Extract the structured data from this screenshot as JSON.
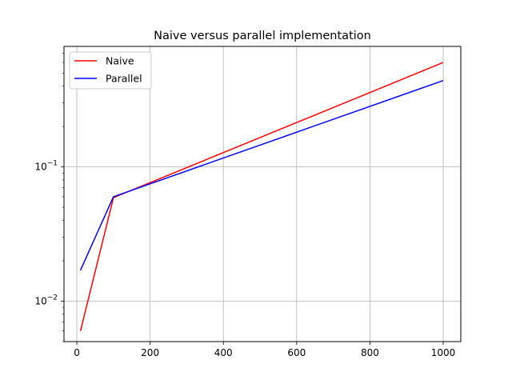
{
  "chart_data": {
    "type": "line",
    "title": "Naive versus parallel implementation",
    "xlabel": "",
    "ylabel": "",
    "xlim": [
      -35,
      1048
    ],
    "ylim": [
      0.005,
      0.79
    ],
    "yscale": "log",
    "x_ticks": [
      0,
      200,
      400,
      600,
      800,
      1000
    ],
    "x_tick_labels": [
      "0",
      "200",
      "400",
      "600",
      "800",
      "1000"
    ],
    "y_ticks": [
      0.01,
      0.1
    ],
    "y_tick_labels": [
      {
        "base": "10",
        "exp": "−2"
      },
      {
        "base": "10",
        "exp": "−1"
      }
    ],
    "grid": true,
    "legend_position": "top-left",
    "series": [
      {
        "name": "Naive",
        "color": "#ff0000",
        "x": [
          10,
          100,
          1000
        ],
        "y": [
          0.006,
          0.059,
          0.6
        ]
      },
      {
        "name": "Parallel",
        "color": "#0000ff",
        "x": [
          10,
          100,
          1000
        ],
        "y": [
          0.017,
          0.06,
          0.44
        ]
      }
    ]
  }
}
